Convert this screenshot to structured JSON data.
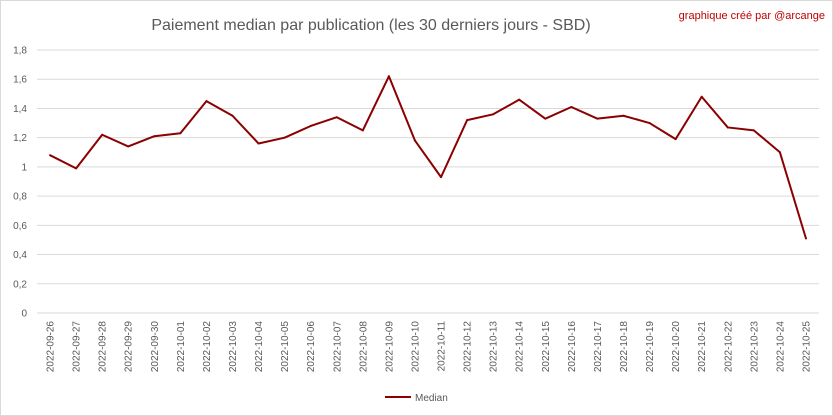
{
  "chart_data": {
    "type": "line",
    "title": "Paiement median par publication (les 30 derniers jours - SBD)",
    "credit": "graphique créé par @arcange",
    "xlabel": "",
    "ylabel": "",
    "ylim": [
      0,
      1.8
    ],
    "yticks": [
      "0",
      "0,2",
      "0,4",
      "0,6",
      "0,8",
      "1",
      "1,2",
      "1,4",
      "1,6",
      "1,8"
    ],
    "grid": true,
    "legend_position": "bottom",
    "categories": [
      "2022-09-26",
      "2022-09-27",
      "2022-09-28",
      "2022-09-29",
      "2022-09-30",
      "2022-10-01",
      "2022-10-02",
      "2022-10-03",
      "2022-10-04",
      "2022-10-05",
      "2022-10-06",
      "2022-10-07",
      "2022-10-08",
      "2022-10-09",
      "2022-10-10",
      "2022-10-11",
      "2022-10-12",
      "2022-10-13",
      "2022-10-14",
      "2022-10-15",
      "2022-10-16",
      "2022-10-17",
      "2022-10-18",
      "2022-10-19",
      "2022-10-20",
      "2022-10-21",
      "2022-10-22",
      "2022-10-23",
      "2022-10-24",
      "2022-10-25"
    ],
    "series": [
      {
        "name": "Median",
        "color": "#8b0000",
        "values": [
          1.08,
          0.99,
          1.22,
          1.14,
          1.21,
          1.23,
          1.45,
          1.35,
          1.16,
          1.2,
          1.28,
          1.34,
          1.25,
          1.62,
          1.18,
          0.93,
          1.32,
          1.36,
          1.46,
          1.33,
          1.41,
          1.33,
          1.35,
          1.3,
          1.19,
          1.48,
          1.27,
          1.25,
          1.1,
          0.51
        ]
      }
    ],
    "colors": {
      "gridline": "#d9d9d9",
      "text": "#595959",
      "credit": "#c00000"
    }
  }
}
